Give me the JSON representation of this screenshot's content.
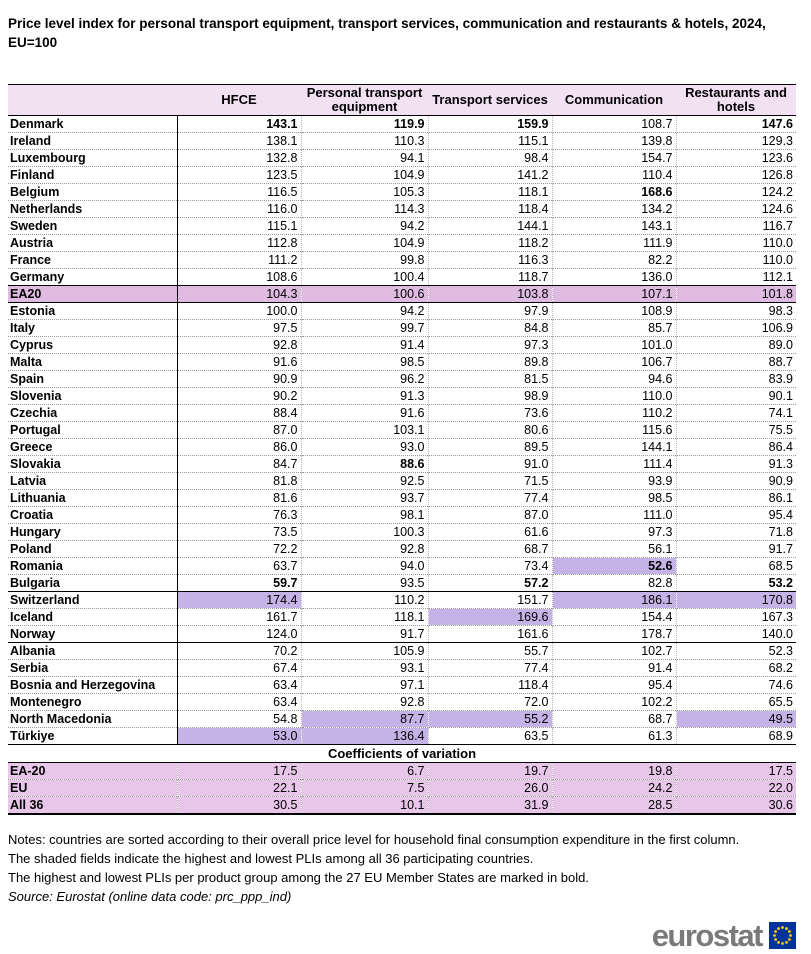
{
  "title": "Price level index for personal transport equipment, transport services, communication and restaurants & hotels, 2024, EU=100",
  "chart_data": {
    "type": "table",
    "title": "Price level index for personal transport equipment, transport services, communication and restaurants & hotels, 2024, EU=100",
    "columns": [
      "HFCE",
      "Personal transport equipment",
      "Transport services",
      "Communication",
      "Restaurants and hotels"
    ],
    "rows": [
      {
        "name": "Denmark",
        "values": [
          "143.1",
          "119.9",
          "159.9",
          "108.7",
          "147.6"
        ],
        "bold": [
          0,
          1,
          2,
          4
        ],
        "shaded": []
      },
      {
        "name": "Ireland",
        "values": [
          "138.1",
          "110.3",
          "115.1",
          "139.8",
          "129.3"
        ],
        "bold": [],
        "shaded": []
      },
      {
        "name": "Luxembourg",
        "values": [
          "132.8",
          "94.1",
          "98.4",
          "154.7",
          "123.6"
        ],
        "bold": [],
        "shaded": []
      },
      {
        "name": "Finland",
        "values": [
          "123.5",
          "104.9",
          "141.2",
          "110.4",
          "126.8"
        ],
        "bold": [],
        "shaded": []
      },
      {
        "name": "Belgium",
        "values": [
          "116.5",
          "105.3",
          "118.1",
          "168.6",
          "124.2"
        ],
        "bold": [
          3
        ],
        "shaded": []
      },
      {
        "name": "Netherlands",
        "values": [
          "116.0",
          "114.3",
          "118.4",
          "134.2",
          "124.6"
        ],
        "bold": [],
        "shaded": []
      },
      {
        "name": "Sweden",
        "values": [
          "115.1",
          "94.2",
          "144.1",
          "143.1",
          "116.7"
        ],
        "bold": [],
        "shaded": []
      },
      {
        "name": "Austria",
        "values": [
          "112.8",
          "104.9",
          "118.2",
          "111.9",
          "110.0"
        ],
        "bold": [],
        "shaded": []
      },
      {
        "name": "France",
        "values": [
          "111.2",
          "99.8",
          "116.3",
          "82.2",
          "110.0"
        ],
        "bold": [],
        "shaded": []
      },
      {
        "name": "Germany",
        "values": [
          "108.6",
          "100.4",
          "118.7",
          "136.0",
          "112.1"
        ],
        "bold": [],
        "shaded": []
      },
      {
        "name": "EA20",
        "values": [
          "104.3",
          "100.6",
          "103.8",
          "107.1",
          "101.8"
        ],
        "bold": [],
        "shaded": [],
        "ea": true,
        "top": true,
        "bottom": true
      },
      {
        "name": "Estonia",
        "values": [
          "100.0",
          "94.2",
          "97.9",
          "108.9",
          "98.3"
        ],
        "bold": [],
        "shaded": []
      },
      {
        "name": "Italy",
        "values": [
          "97.5",
          "99.7",
          "84.8",
          "85.7",
          "106.9"
        ],
        "bold": [],
        "shaded": []
      },
      {
        "name": "Cyprus",
        "values": [
          "92.8",
          "91.4",
          "97.3",
          "101.0",
          "89.0"
        ],
        "bold": [],
        "shaded": []
      },
      {
        "name": "Malta",
        "values": [
          "91.6",
          "98.5",
          "89.8",
          "106.7",
          "88.7"
        ],
        "bold": [],
        "shaded": []
      },
      {
        "name": "Spain",
        "values": [
          "90.9",
          "96.2",
          "81.5",
          "94.6",
          "83.9"
        ],
        "bold": [],
        "shaded": []
      },
      {
        "name": "Slovenia",
        "values": [
          "90.2",
          "91.3",
          "98.9",
          "110.0",
          "90.1"
        ],
        "bold": [],
        "shaded": []
      },
      {
        "name": "Czechia",
        "values": [
          "88.4",
          "91.6",
          "73.6",
          "110.2",
          "74.1"
        ],
        "bold": [],
        "shaded": []
      },
      {
        "name": "Portugal",
        "values": [
          "87.0",
          "103.1",
          "80.6",
          "115.6",
          "75.5"
        ],
        "bold": [],
        "shaded": []
      },
      {
        "name": "Greece",
        "values": [
          "86.0",
          "93.0",
          "89.5",
          "144.1",
          "86.4"
        ],
        "bold": [],
        "shaded": []
      },
      {
        "name": "Slovakia",
        "values": [
          "84.7",
          "88.6",
          "91.0",
          "111.4",
          "91.3"
        ],
        "bold": [
          1
        ],
        "shaded": []
      },
      {
        "name": "Latvia",
        "values": [
          "81.8",
          "92.5",
          "71.5",
          "93.9",
          "90.9"
        ],
        "bold": [],
        "shaded": []
      },
      {
        "name": "Lithuania",
        "values": [
          "81.6",
          "93.7",
          "77.4",
          "98.5",
          "86.1"
        ],
        "bold": [],
        "shaded": []
      },
      {
        "name": "Croatia",
        "values": [
          "76.3",
          "98.1",
          "87.0",
          "111.0",
          "95.4"
        ],
        "bold": [],
        "shaded": []
      },
      {
        "name": "Hungary",
        "values": [
          "73.5",
          "100.3",
          "61.6",
          "97.3",
          "71.8"
        ],
        "bold": [],
        "shaded": []
      },
      {
        "name": "Poland",
        "values": [
          "72.2",
          "92.8",
          "68.7",
          "56.1",
          "91.7"
        ],
        "bold": [],
        "shaded": []
      },
      {
        "name": "Romania",
        "values": [
          "63.7",
          "94.0",
          "73.4",
          "52.6",
          "68.5"
        ],
        "bold": [
          3
        ],
        "shaded": [
          3
        ]
      },
      {
        "name": "Bulgaria",
        "values": [
          "59.7",
          "93.5",
          "57.2",
          "82.8",
          "53.2"
        ],
        "bold": [
          0,
          2,
          4
        ],
        "shaded": []
      },
      {
        "name": "Switzerland",
        "values": [
          "174.4",
          "110.2",
          "151.7",
          "186.1",
          "170.8"
        ],
        "bold": [],
        "shaded": [
          0,
          3,
          4
        ],
        "top": true
      },
      {
        "name": "Iceland",
        "values": [
          "161.7",
          "118.1",
          "169.6",
          "154.4",
          "167.3"
        ],
        "bold": [],
        "shaded": [
          2
        ]
      },
      {
        "name": "Norway",
        "values": [
          "124.0",
          "91.7",
          "161.6",
          "178.7",
          "140.0"
        ],
        "bold": [],
        "shaded": []
      },
      {
        "name": "Albania",
        "values": [
          "70.2",
          "105.9",
          "55.7",
          "102.7",
          "52.3"
        ],
        "bold": [],
        "shaded": [],
        "top": true
      },
      {
        "name": "Serbia",
        "values": [
          "67.4",
          "93.1",
          "77.4",
          "91.4",
          "68.2"
        ],
        "bold": [],
        "shaded": []
      },
      {
        "name": "Bosnia and Herzegovina",
        "values": [
          "63.4",
          "97.1",
          "118.4",
          "95.4",
          "74.6"
        ],
        "bold": [],
        "shaded": []
      },
      {
        "name": "Montenegro",
        "values": [
          "63.4",
          "92.8",
          "72.0",
          "102.2",
          "65.5"
        ],
        "bold": [],
        "shaded": []
      },
      {
        "name": "North Macedonia",
        "values": [
          "54.8",
          "87.7",
          "55.2",
          "68.7",
          "49.5"
        ],
        "bold": [],
        "shaded": [
          1,
          2,
          4
        ]
      },
      {
        "name": "Türkiye",
        "values": [
          "53.0",
          "136.4",
          "63.5",
          "61.3",
          "68.9"
        ],
        "bold": [],
        "shaded": [
          0,
          1
        ],
        "bottom": true
      }
    ],
    "coefficients": {
      "label": "Coefficients of variation",
      "rows": [
        {
          "name": "EA-20",
          "values": [
            "17.5",
            "6.7",
            "19.7",
            "19.8",
            "17.5"
          ]
        },
        {
          "name": "EU",
          "values": [
            "22.1",
            "7.5",
            "26.0",
            "24.2",
            "22.0"
          ]
        },
        {
          "name": "All 36",
          "values": [
            "30.5",
            "10.1",
            "31.9",
            "28.5",
            "30.6"
          ]
        }
      ]
    }
  },
  "notes": [
    "Notes: countries are sorted according to their overall price level for household final consumption expenditure in the first column.",
    "The shaded fields indicate the highest and lowest PLIs among all 36 participating countries.",
    "The highest and lowest PLIs per product group among the 27 EU Member States are marked in bold."
  ],
  "source": "Source: Eurostat (online data code: prc_ppp_ind)",
  "logo": {
    "text": "eurostat"
  },
  "colors": {
    "header-bg": "#f2e1f3",
    "ea-bg": "#dfbbe1",
    "coeff-bg": "#e8c6ea",
    "hl-bg": "#c5b3e8",
    "logo-gray": "#7a7a7a",
    "eu-blue": "#003399",
    "star-yellow": "#ffcc00"
  }
}
